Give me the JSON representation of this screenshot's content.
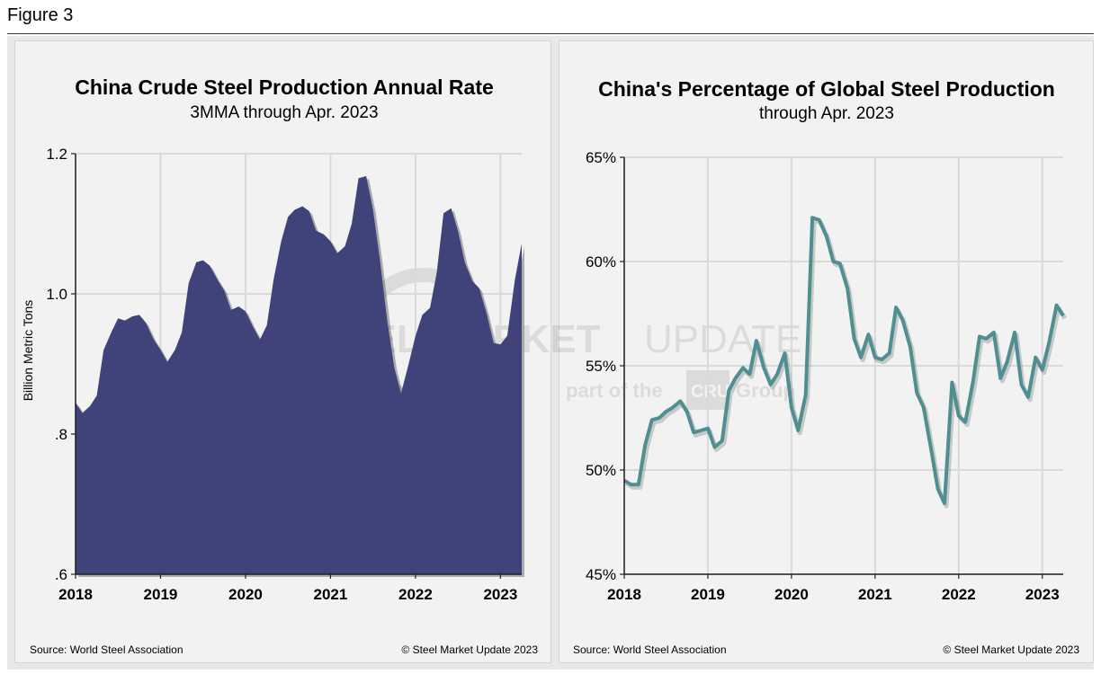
{
  "figure_label": "Figure 3",
  "watermark": {
    "brand_bold": "STEEL MARKET",
    "brand_light": "UPDATE",
    "tag_prefix": "part of the",
    "tag_logo": "CRU",
    "tag_suffix": "Group"
  },
  "chart_data": [
    {
      "type": "area",
      "title": "China Crude Steel Production Annual Rate",
      "subtitle": "3MMA through Apr. 2023",
      "ylabel": "Billion Metric Tons",
      "xlabel": "",
      "ylim": [
        0.6,
        1.2
      ],
      "yticks": [
        0.6,
        0.8,
        1.0,
        1.2
      ],
      "ytick_labels": [
        ".6",
        ".8",
        "1.0",
        "1.2"
      ],
      "xlim": [
        2018.0,
        2023.25
      ],
      "xticks": [
        2018,
        2019,
        2020,
        2021,
        2022,
        2023
      ],
      "xtick_labels": [
        "2018",
        "2019",
        "2020",
        "2021",
        "2022",
        "2023"
      ],
      "grid": true,
      "color": "#3f437a",
      "series": [
        {
          "name": "China crude steel production annual rate (3MMA)",
          "x": [
            2018.0,
            2018.08,
            2018.17,
            2018.25,
            2018.33,
            2018.42,
            2018.5,
            2018.58,
            2018.67,
            2018.75,
            2018.83,
            2018.92,
            2019.0,
            2019.08,
            2019.17,
            2019.25,
            2019.33,
            2019.42,
            2019.5,
            2019.58,
            2019.67,
            2019.75,
            2019.83,
            2019.92,
            2020.0,
            2020.08,
            2020.17,
            2020.25,
            2020.33,
            2020.42,
            2020.5,
            2020.58,
            2020.67,
            2020.75,
            2020.83,
            2020.92,
            2021.0,
            2021.08,
            2021.17,
            2021.25,
            2021.33,
            2021.42,
            2021.5,
            2021.58,
            2021.67,
            2021.75,
            2021.83,
            2021.92,
            2022.0,
            2022.08,
            2022.17,
            2022.25,
            2022.33,
            2022.42,
            2022.5,
            2022.58,
            2022.67,
            2022.75,
            2022.83,
            2022.92,
            2023.0,
            2023.08,
            2023.17,
            2023.25
          ],
          "values": [
            0.845,
            0.83,
            0.84,
            0.855,
            0.92,
            0.945,
            0.965,
            0.962,
            0.968,
            0.97,
            0.958,
            0.935,
            0.92,
            0.903,
            0.92,
            0.945,
            1.015,
            1.045,
            1.048,
            1.04,
            1.02,
            1.005,
            0.977,
            0.982,
            0.975,
            0.955,
            0.935,
            0.955,
            1.02,
            1.075,
            1.11,
            1.12,
            1.125,
            1.118,
            1.09,
            1.085,
            1.075,
            1.058,
            1.068,
            1.1,
            1.165,
            1.168,
            1.12,
            1.05,
            0.96,
            0.895,
            0.858,
            0.9,
            0.94,
            0.97,
            0.98,
            1.03,
            1.115,
            1.122,
            1.09,
            1.045,
            1.018,
            1.008,
            0.975,
            0.93,
            0.928,
            0.94,
            1.02,
            1.072
          ]
        }
      ],
      "source": "Source: World Steel Association",
      "copyright": "© Steel Market Update 2023"
    },
    {
      "type": "line",
      "title": "China's Percentage of Global Steel Production",
      "subtitle": "through Apr. 2023",
      "ylabel": "",
      "xlabel": "",
      "ylim": [
        45,
        65
      ],
      "yticks": [
        45,
        50,
        55,
        60,
        65
      ],
      "ytick_labels": [
        "45%",
        "50%",
        "55%",
        "60%",
        "65%"
      ],
      "xlim": [
        2018.0,
        2023.25
      ],
      "xticks": [
        2018,
        2019,
        2020,
        2021,
        2022,
        2023
      ],
      "xtick_labels": [
        "2018",
        "2019",
        "2020",
        "2021",
        "2022",
        "2023"
      ],
      "grid": true,
      "color": "#4f8f91",
      "series": [
        {
          "name": "China share of global steel production (%)",
          "x": [
            2018.0,
            2018.08,
            2018.17,
            2018.25,
            2018.33,
            2018.42,
            2018.5,
            2018.58,
            2018.67,
            2018.75,
            2018.83,
            2018.92,
            2019.0,
            2019.08,
            2019.17,
            2019.25,
            2019.33,
            2019.42,
            2019.5,
            2019.58,
            2019.67,
            2019.75,
            2019.83,
            2019.92,
            2020.0,
            2020.08,
            2020.17,
            2020.25,
            2020.33,
            2020.42,
            2020.5,
            2020.58,
            2020.67,
            2020.75,
            2020.83,
            2020.92,
            2021.0,
            2021.08,
            2021.17,
            2021.25,
            2021.33,
            2021.42,
            2021.5,
            2021.58,
            2021.67,
            2021.75,
            2021.83,
            2021.92,
            2022.0,
            2022.08,
            2022.17,
            2022.25,
            2022.33,
            2022.42,
            2022.5,
            2022.58,
            2022.67,
            2022.75,
            2022.83,
            2022.92,
            2023.0,
            2023.08,
            2023.17,
            2023.25
          ],
          "values": [
            49.5,
            49.3,
            49.3,
            51.2,
            52.4,
            52.5,
            52.8,
            53.0,
            53.3,
            52.8,
            51.8,
            51.9,
            52.0,
            51.1,
            51.4,
            53.8,
            54.4,
            54.9,
            54.6,
            56.2,
            54.9,
            54.1,
            54.6,
            55.6,
            53.0,
            51.9,
            53.6,
            62.1,
            62.0,
            61.2,
            60.0,
            59.9,
            58.7,
            56.3,
            55.4,
            56.5,
            55.4,
            55.3,
            55.6,
            57.8,
            57.2,
            55.9,
            53.7,
            53.0,
            51.0,
            49.1,
            48.4,
            54.2,
            52.6,
            52.3,
            54.2,
            56.4,
            56.3,
            56.6,
            54.4,
            55.2,
            56.6,
            54.1,
            53.5,
            55.4,
            54.8,
            56.1,
            57.9,
            57.4
          ]
        }
      ],
      "source": "Source: World Steel Association",
      "copyright": "© Steel Market Update 2023"
    }
  ]
}
